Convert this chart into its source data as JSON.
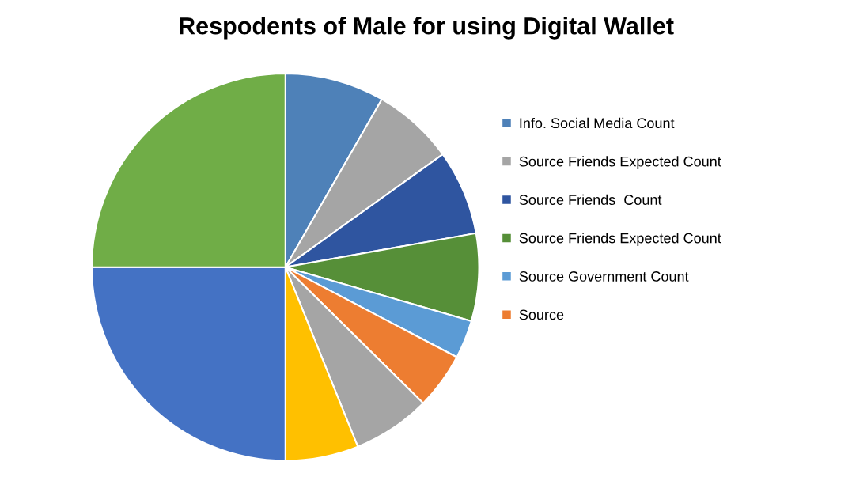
{
  "chart_data": {
    "type": "pie",
    "title": "Respodents of Male for using Digital Wallet",
    "categories": [
      "Info. Social Media Count",
      "Source Friends Expected Count",
      "Source Friends  Count",
      "Source Friends Expected Count",
      "Source Government Count",
      "Source",
      null,
      null,
      null,
      null
    ],
    "values": [
      8.3,
      6.8,
      7.1,
      7.3,
      3.2,
      4.7,
      6.5,
      6.1,
      25,
      25
    ],
    "colors": [
      "#4e81b8",
      "#a5a5a5",
      "#2f55a0",
      "#568f38",
      "#5b9bd5",
      "#ed7d31",
      "#a5a5a5",
      "#ffc000",
      "#4472c4",
      "#70ad47"
    ],
    "legend": "right"
  }
}
